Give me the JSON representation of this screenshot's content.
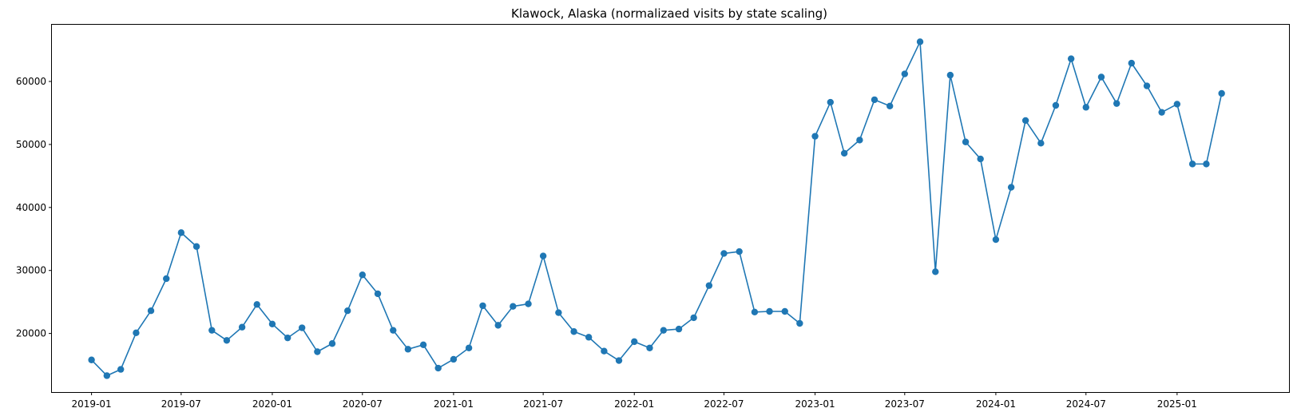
{
  "chart_data": {
    "type": "line",
    "title": "Klawock, Alaska (normalizaed visits by state scaling)",
    "xlabel": "",
    "ylabel": "",
    "grid": false,
    "legend": "none",
    "color": "#1f77b4",
    "marker": "circle",
    "xlim": [
      "2018-10-13",
      "2025-08-15"
    ],
    "ylim": [
      10700,
      69000
    ],
    "x_ticks": [
      "2019-01",
      "2019-07",
      "2020-01",
      "2020-07",
      "2021-01",
      "2021-07",
      "2022-01",
      "2022-07",
      "2023-01",
      "2023-07",
      "2024-01",
      "2024-07",
      "2025-01"
    ],
    "y_ticks": [
      20000,
      30000,
      40000,
      50000,
      60000
    ],
    "series": [
      {
        "x": [
          "2019-01",
          "2019-02",
          "2019-03",
          "2019-04",
          "2019-05",
          "2019-06",
          "2019-07",
          "2019-08",
          "2019-09",
          "2019-10",
          "2019-11",
          "2019-12",
          "2020-01",
          "2020-02",
          "2020-03",
          "2020-04",
          "2020-05",
          "2020-06",
          "2020-07",
          "2020-08",
          "2020-09",
          "2020-10",
          "2020-11",
          "2020-12",
          "2021-01",
          "2021-02",
          "2021-03",
          "2021-04",
          "2021-05",
          "2021-06",
          "2021-07",
          "2021-08",
          "2021-09",
          "2021-10",
          "2021-11",
          "2021-12",
          "2022-01",
          "2022-02",
          "2022-03",
          "2022-04",
          "2022-05",
          "2022-06",
          "2022-07",
          "2022-08",
          "2022-09",
          "2022-10",
          "2022-11",
          "2022-12",
          "2023-01",
          "2023-02",
          "2023-03",
          "2023-04",
          "2023-05",
          "2023-06",
          "2023-07",
          "2023-08",
          "2023-09",
          "2023-10",
          "2023-11",
          "2023-12",
          "2024-01",
          "2024-02",
          "2024-03",
          "2024-04",
          "2024-05",
          "2024-06",
          "2024-07",
          "2024-08",
          "2024-09",
          "2024-10",
          "2024-11",
          "2024-12",
          "2025-01",
          "2025-02",
          "2025-03",
          "2025-04"
        ],
        "values": [
          15800,
          13300,
          14300,
          20100,
          23600,
          28700,
          36000,
          33800,
          20500,
          18900,
          21000,
          24600,
          21500,
          19300,
          20900,
          17100,
          18400,
          23600,
          29300,
          26300,
          20500,
          17500,
          18200,
          14500,
          15900,
          17700,
          24400,
          21300,
          24300,
          24700,
          32300,
          23300,
          20300,
          19400,
          17200,
          15700,
          18700,
          17700,
          20500,
          20700,
          22500,
          27600,
          32700,
          33000,
          23400,
          23500,
          23500,
          21600,
          51300,
          56700,
          48600,
          50700,
          57100,
          56100,
          61200,
          66300,
          29800,
          61000,
          50400,
          47700,
          34900,
          43200,
          53800,
          50200,
          56200,
          63600,
          55900,
          60700,
          56500,
          62900,
          59300,
          55100,
          56400,
          46900,
          46900,
          58100
        ]
      }
    ]
  }
}
